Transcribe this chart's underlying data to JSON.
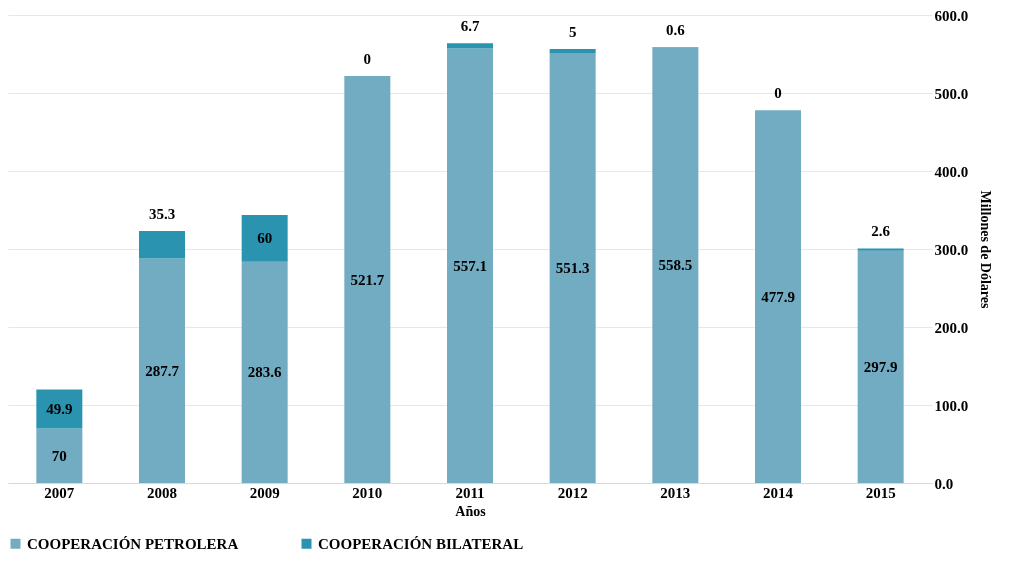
{
  "chart_data": {
    "type": "bar",
    "stacked": true,
    "xlabel": "Años",
    "ylabel": "Millones de Dólares",
    "categories": [
      "2007",
      "2008",
      "2009",
      "2010",
      "2011",
      "2012",
      "2013",
      "2014",
      "2015"
    ],
    "series": [
      {
        "name": "COOPERACIÓN PETROLERA",
        "color": "#72acc2",
        "values": [
          70,
          287.7,
          283.6,
          521.7,
          557.1,
          551.3,
          558.5,
          477.9,
          297.9
        ]
      },
      {
        "name": "COOPERACIÓN BILATERAL",
        "color": "#2a93b0",
        "values": [
          49.9,
          35.3,
          60,
          0,
          6.7,
          5,
          0.6,
          0,
          2.6
        ]
      }
    ],
    "ylim": [
      0,
      600
    ],
    "yticks": [
      {
        "value": 0,
        "label": "0.0"
      },
      {
        "value": 100,
        "label": "100.0"
      },
      {
        "value": 200,
        "label": "200.0"
      },
      {
        "value": 300,
        "label": "300.0"
      },
      {
        "value": 400,
        "label": "400.0"
      },
      {
        "value": 500,
        "label": "500.0"
      },
      {
        "value": 600,
        "label": "600.0"
      }
    ],
    "grid": "y",
    "legend": "bottom",
    "data_labels": true
  }
}
